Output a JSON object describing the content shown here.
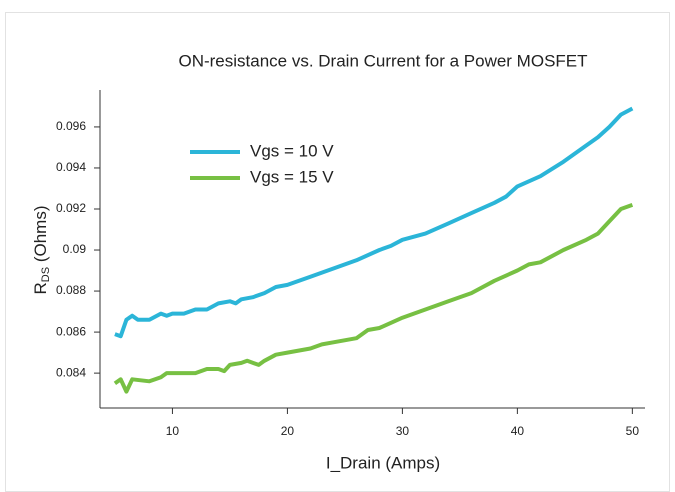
{
  "chart_data": {
    "type": "line",
    "title": "ON-resistance vs. Drain Current for a Power MOSFET",
    "xlabel": "I_Drain (Amps)",
    "ylabel": {
      "main": "R",
      "sub": "DS",
      "rest": " (Ohms)"
    },
    "xlim": [
      3.7,
      51.1
    ],
    "xticks": [
      10,
      20,
      30,
      40,
      50
    ],
    "ylim": [
      0.0823,
      0.0978
    ],
    "yticks": [
      0.084,
      0.086,
      0.088,
      0.09,
      0.092,
      0.094,
      0.096
    ],
    "legend": "upper left",
    "series": [
      {
        "name": "Vgs = 10 V",
        "color": "#2bb5d8",
        "x": [
          5,
          5.5,
          6,
          6.5,
          7,
          8,
          9,
          9.5,
          10,
          11,
          12,
          13,
          14,
          15,
          15.5,
          16,
          17,
          18,
          19,
          20,
          22,
          24,
          26,
          28,
          29,
          30,
          32,
          34,
          36,
          38,
          39,
          40,
          42,
          44,
          46,
          47,
          48,
          49,
          50
        ],
        "values": [
          0.0859,
          0.0858,
          0.0866,
          0.0868,
          0.0866,
          0.0866,
          0.0869,
          0.0868,
          0.0869,
          0.0869,
          0.0871,
          0.0871,
          0.0874,
          0.0875,
          0.0874,
          0.0876,
          0.0877,
          0.0879,
          0.0882,
          0.0883,
          0.0887,
          0.0891,
          0.0895,
          0.09,
          0.0902,
          0.0905,
          0.0908,
          0.0913,
          0.0918,
          0.0923,
          0.0926,
          0.0931,
          0.0936,
          0.0943,
          0.0951,
          0.0955,
          0.096,
          0.0966,
          0.0969
        ]
      },
      {
        "name": "Vgs = 15 V",
        "color": "#77c043",
        "x": [
          5,
          5.5,
          6,
          6.5,
          8,
          9,
          9.5,
          12,
          13,
          14,
          14.5,
          15,
          16,
          16.5,
          17.5,
          18,
          19,
          20,
          22,
          23,
          24,
          26,
          27,
          28,
          30,
          32,
          34,
          36,
          38,
          40,
          41,
          42,
          44,
          46,
          47,
          48,
          49,
          50
        ],
        "values": [
          0.0835,
          0.0837,
          0.0831,
          0.0837,
          0.0836,
          0.0838,
          0.084,
          0.084,
          0.0842,
          0.0842,
          0.0841,
          0.0844,
          0.0845,
          0.0846,
          0.0844,
          0.0846,
          0.0849,
          0.085,
          0.0852,
          0.0854,
          0.0855,
          0.0857,
          0.0861,
          0.0862,
          0.0867,
          0.0871,
          0.0875,
          0.0879,
          0.0885,
          0.089,
          0.0893,
          0.0894,
          0.09,
          0.0905,
          0.0908,
          0.0914,
          0.092,
          0.0922
        ]
      }
    ]
  }
}
